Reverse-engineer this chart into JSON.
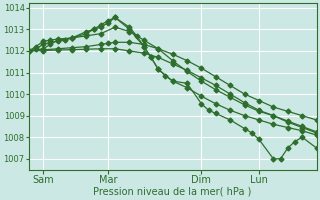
{
  "background_color": "#cce8e4",
  "grid_color": "#ffffff",
  "line_color": "#2d6e2d",
  "marker": "D",
  "marker_size": 2.5,
  "xlabel": "Pression niveau de la mer( hPa )",
  "ylim": [
    1006.5,
    1014.2
  ],
  "xlim": [
    0,
    20
  ],
  "xtick_labels_pos": [
    1,
    5.5,
    12,
    16
  ],
  "xtick_labels_text": [
    "Sam",
    "Mar",
    "Dim",
    "Lun"
  ],
  "ytick_values": [
    1007,
    1008,
    1009,
    1010,
    1011,
    1012,
    1013,
    1014
  ],
  "series": [
    {
      "x": [
        0,
        1,
        1.5,
        2,
        3,
        4,
        4.5,
        5,
        5.5,
        6,
        7,
        7.5,
        8,
        8.5,
        9,
        10,
        11,
        12,
        13,
        14,
        15,
        16,
        17,
        18,
        19,
        20
      ],
      "y": [
        1012.0,
        1012.1,
        1012.3,
        1012.5,
        1012.6,
        1012.9,
        1013.0,
        1013.1,
        1013.3,
        1013.55,
        1013.1,
        1012.7,
        1012.2,
        1011.7,
        1011.15,
        1010.6,
        1010.3,
        1009.9,
        1009.55,
        1009.25,
        1009.0,
        1008.8,
        1008.6,
        1008.45,
        1008.3,
        1008.1
      ]
    },
    {
      "x": [
        0,
        1,
        2,
        3,
        4,
        5,
        5.5,
        6,
        7,
        8,
        9,
        10,
        11,
        12,
        13,
        14,
        15,
        16,
        17,
        18,
        19,
        20
      ],
      "y": [
        1012.0,
        1012.05,
        1012.1,
        1012.15,
        1012.2,
        1012.3,
        1012.35,
        1012.4,
        1012.4,
        1012.3,
        1012.1,
        1011.85,
        1011.55,
        1011.2,
        1010.8,
        1010.4,
        1010.0,
        1009.7,
        1009.4,
        1009.2,
        1009.0,
        1008.8
      ]
    },
    {
      "x": [
        0,
        1,
        2,
        3,
        4,
        5,
        6,
        7,
        8,
        9,
        10,
        11,
        12,
        13,
        14,
        15,
        16,
        17,
        18,
        19,
        20
      ],
      "y": [
        1012.0,
        1012.02,
        1012.04,
        1012.06,
        1012.08,
        1012.1,
        1012.1,
        1012.0,
        1011.9,
        1011.7,
        1011.4,
        1011.1,
        1010.75,
        1010.4,
        1010.0,
        1009.6,
        1009.25,
        1009.0,
        1008.7,
        1008.45,
        1008.2
      ]
    },
    {
      "x": [
        0,
        0.5,
        1,
        1.5,
        2,
        2.5,
        3,
        4,
        4.5,
        5,
        5.5,
        6,
        7,
        8,
        8.5,
        9,
        9.5,
        10,
        11,
        12,
        12.5,
        13,
        14,
        15,
        15.5,
        16,
        17,
        17.5,
        18,
        18.5,
        19,
        20
      ],
      "y": [
        1012.0,
        1012.1,
        1012.3,
        1012.4,
        1012.45,
        1012.5,
        1012.6,
        1012.8,
        1013.0,
        1013.2,
        1013.4,
        1013.55,
        1013.0,
        1012.2,
        1011.7,
        1011.15,
        1010.85,
        1010.6,
        1010.5,
        1009.55,
        1009.25,
        1009.1,
        1008.8,
        1008.4,
        1008.2,
        1007.9,
        1007.0,
        1007.0,
        1007.5,
        1007.8,
        1008.0,
        1007.5
      ]
    },
    {
      "x": [
        0,
        0.5,
        1,
        1.5,
        2,
        3,
        4,
        5,
        6,
        7,
        8,
        9,
        10,
        11,
        12,
        13,
        14,
        15,
        16,
        17,
        18,
        19,
        20
      ],
      "y": [
        1012.0,
        1012.2,
        1012.45,
        1012.5,
        1012.55,
        1012.6,
        1012.7,
        1012.8,
        1013.1,
        1012.9,
        1012.5,
        1012.1,
        1011.55,
        1011.05,
        1010.6,
        1010.2,
        1009.85,
        1009.5,
        1009.2,
        1009.0,
        1008.75,
        1008.5,
        1008.25
      ]
    }
  ]
}
